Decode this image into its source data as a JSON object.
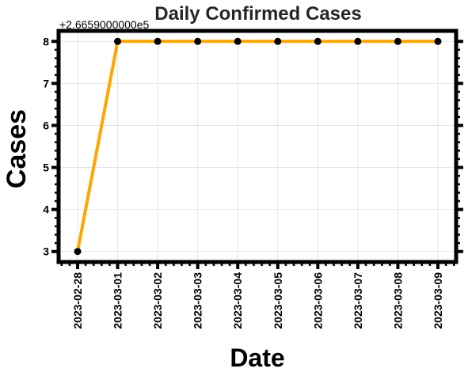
{
  "chart_data": {
    "type": "line",
    "title": "Daily Confirmed Cases",
    "xlabel": "Date",
    "ylabel": "Cases",
    "y_offset_label": "+2.6659000000e5",
    "x": [
      "2023-02-28",
      "2023-03-01",
      "2023-03-02",
      "2023-03-03",
      "2023-03-04",
      "2023-03-05",
      "2023-03-06",
      "2023-03-07",
      "2023-03-08",
      "2023-03-09"
    ],
    "series": [
      {
        "values": [
          3,
          8,
          8,
          8,
          8,
          8,
          8,
          8,
          8,
          8
        ]
      }
    ],
    "y_tick_values": [
      3,
      4,
      5,
      6,
      7,
      8
    ],
    "y_tick_labels": [
      "3",
      "4",
      "5",
      "6",
      "7",
      "8"
    ],
    "ylim": [
      2.75,
      8.25
    ],
    "grid": true,
    "line_color": "#FFA500",
    "marker_color": "#000000"
  }
}
